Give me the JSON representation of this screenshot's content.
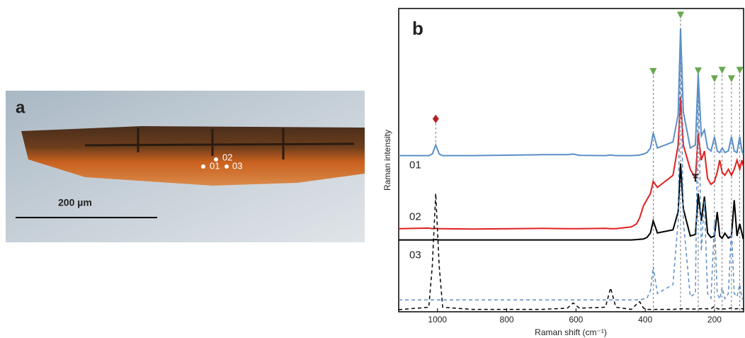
{
  "panel_a": {
    "label": "a",
    "points": [
      "02",
      "01",
      "03"
    ],
    "scale_bar": "200 µm"
  },
  "chart_data": {
    "type": "line",
    "panel_label": "b",
    "x_label": "Raman shift (cm⁻¹)",
    "y_label": "Raman intensity",
    "xlim": [
      1112,
      116
    ],
    "ylim": [
      0,
      100
    ],
    "xticks": [
      1000,
      800,
      600,
      400,
      200
    ],
    "x": [
      1112,
      1025,
      1015,
      1005,
      995,
      985,
      900,
      700,
      625,
      608,
      590,
      515,
      500,
      485,
      440,
      425,
      416,
      405,
      395,
      385,
      377,
      365,
      320,
      305,
      298,
      290,
      270,
      255,
      247,
      238,
      229,
      220,
      210,
      200,
      192,
      185,
      178,
      170,
      160,
      151,
      143,
      135,
      127,
      121,
      117
    ],
    "series": [
      {
        "name": "01",
        "color": "#5b8fc7",
        "dashed": false,
        "values": [
          51.5,
          51.5,
          52,
          55,
          52,
          51.5,
          51.5,
          51.8,
          51.8,
          52,
          51.6,
          51.5,
          51.7,
          51.5,
          51.5,
          51.6,
          51.7,
          52,
          52.5,
          54,
          59,
          54,
          56,
          65,
          93.4,
          66,
          54,
          55,
          78.5,
          58,
          60,
          54,
          53,
          57.7,
          53,
          52.5,
          54,
          52.5,
          53,
          57.7,
          53,
          52.5,
          57.7,
          53,
          52
        ]
      },
      {
        "name": "02",
        "color": "#e02020",
        "dashed": false,
        "values": [
          27.4,
          27.6,
          27.4,
          27.5,
          27.4,
          27.4,
          27.3,
          27.5,
          27.4,
          27.4,
          27.4,
          27.5,
          27.4,
          27.4,
          28,
          29,
          31,
          35,
          37,
          39,
          43,
          41,
          45,
          55,
          70.8,
          55,
          47,
          44,
          58.8,
          50,
          53,
          44,
          42,
          43,
          46,
          50,
          46,
          45,
          47,
          45,
          47,
          50,
          47,
          50,
          48
        ]
      },
      {
        "name": "03",
        "color": "#000000",
        "dashed": false,
        "values": [
          23.7,
          23.7,
          23.7,
          23.8,
          23.7,
          23.7,
          23.7,
          23.7,
          23.7,
          23.7,
          23.7,
          23.7,
          23.7,
          23.7,
          23.7,
          23.8,
          23.9,
          24,
          24.5,
          26,
          30,
          26,
          27,
          33,
          48.9,
          34,
          25,
          25.5,
          39,
          30,
          38,
          26,
          24.5,
          25,
          32.9,
          25,
          24.2,
          25.9,
          24.3,
          25,
          36.8,
          25,
          29,
          26,
          24
        ]
      },
      {
        "color": "#5b8fc7",
        "dashed": true,
        "values": [
          3.9,
          3.9,
          3.9,
          4,
          3.9,
          3.9,
          3.9,
          3.9,
          3.9,
          3.9,
          3.9,
          3.9,
          3.9,
          3.9,
          3.9,
          3.9,
          4,
          4.2,
          4.5,
          7,
          14.9,
          6,
          9,
          30,
          91.7,
          30,
          5,
          6,
          77,
          20,
          36.8,
          6,
          4.5,
          30,
          6,
          4.2,
          8,
          4.3,
          6,
          28,
          6,
          5,
          9,
          4.5,
          4
        ]
      },
      {
        "color": "#000000",
        "dashed": true,
        "values": [
          0.7,
          1.5,
          15,
          39,
          15,
          1.5,
          0.8,
          0.8,
          1.2,
          2.9,
          1.2,
          1.5,
          7.9,
          1.5,
          0.8,
          2.5,
          3.3,
          1.2,
          0.8,
          0.8,
          0.8,
          0.8,
          0.8,
          0.9,
          1,
          1,
          0.9,
          0.9,
          1,
          1,
          1,
          1,
          1,
          1.8,
          1,
          0.9,
          1,
          0.9,
          1,
          1.3,
          1,
          1,
          1.2,
          1,
          0.9
        ]
      }
    ],
    "peak_markers": {
      "color": "#6aa84f",
      "x": [
        377,
        298,
        247,
        200,
        178,
        151,
        127
      ],
      "y": [
        79.2,
        97.8,
        79.4,
        76.8,
        79.6,
        76.8,
        79.6
      ]
    },
    "reference_marker": {
      "color": "#b22222",
      "x": 1005,
      "y": 63.6
    },
    "annotations": [
      {
        "text": "Ŧ",
        "x": 255,
        "y": 43.9
      }
    ]
  }
}
